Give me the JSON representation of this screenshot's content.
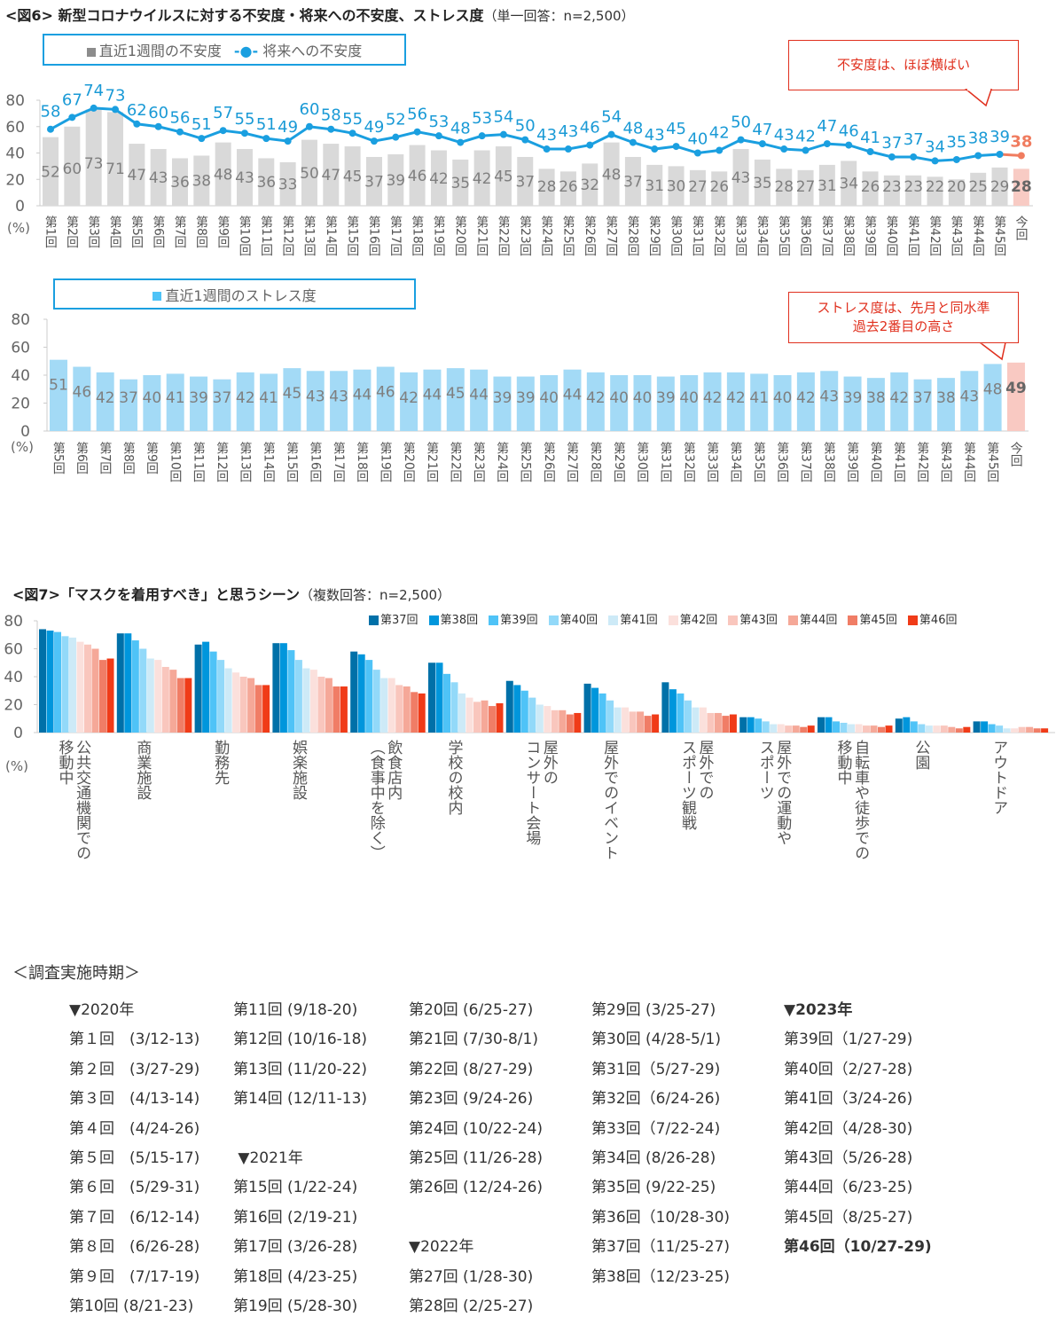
{
  "fig6": {
    "title": "<図6> 新型コロナウイルスに対する不安度・将来への不安度、ストレス度",
    "subtitle": "（単一回答：n=2,500）",
    "pct_label": "(%)"
  },
  "fig7": {
    "title": "<図7>「マスクを着用すべき」と思うシーン",
    "subtitle": "（複数回答：n=2,500）",
    "pct_label": "(%)"
  },
  "callouts": {
    "anxiety": "不安度は、ほぼ横ばい",
    "stress_line1": "ストレス度は、先月と同水準",
    "stress_line2": "過去2番目の高さ"
  },
  "chart_data": [
    {
      "type": "bar+line",
      "title": "不安度・将来への不安度",
      "ylim": [
        0,
        80
      ],
      "yticks": [
        "0",
        "20",
        "40",
        "60",
        "80"
      ],
      "categories": [
        "第1回",
        "第2回",
        "第3回",
        "第4回",
        "第5回",
        "第6回",
        "第7回",
        "第8回",
        "第9回",
        "第10回",
        "第11回",
        "第12回",
        "第13回",
        "第14回",
        "第15回",
        "第16回",
        "第17回",
        "第18回",
        "第19回",
        "第20回",
        "第21回",
        "第22回",
        "第23回",
        "第24回",
        "第25回",
        "第26回",
        "第27回",
        "第28回",
        "第29回",
        "第30回",
        "第31回",
        "第32回",
        "第33回",
        "第34回",
        "第35回",
        "第36回",
        "第37回",
        "第38回",
        "第39回",
        "第40回",
        "第41回",
        "第42回",
        "第43回",
        "第44回",
        "第45回",
        "今回"
      ],
      "series": [
        {
          "name": "直近1週間の不安度",
          "type": "bar",
          "color": "#d9d9d9",
          "current_color": "#f8cbc4",
          "values": [
            52,
            60,
            73,
            71,
            47,
            43,
            36,
            38,
            48,
            43,
            36,
            33,
            50,
            47,
            45,
            37,
            39,
            46,
            42,
            35,
            42,
            45,
            37,
            28,
            26,
            32,
            48,
            37,
            31,
            30,
            27,
            26,
            43,
            35,
            28,
            27,
            31,
            34,
            26,
            23,
            23,
            22,
            20,
            25,
            29,
            28
          ]
        },
        {
          "name": "将来への不安度",
          "type": "line",
          "color": "#1a9fe0",
          "current_color": "#f07c5f",
          "values": [
            58,
            67,
            74,
            73,
            62,
            60,
            56,
            51,
            57,
            55,
            51,
            49,
            60,
            58,
            55,
            49,
            52,
            56,
            53,
            48,
            53,
            54,
            50,
            43,
            43,
            46,
            54,
            48,
            43,
            45,
            40,
            42,
            50,
            47,
            43,
            42,
            47,
            46,
            41,
            37,
            37,
            34,
            35,
            38,
            39,
            38
          ]
        }
      ]
    },
    {
      "type": "bar",
      "title": "直近1週間のストレス度",
      "ylim": [
        0,
        80
      ],
      "yticks": [
        "0",
        "20",
        "40",
        "60",
        "80"
      ],
      "categories": [
        "第5回",
        "第6回",
        "第7回",
        "第8回",
        "第9回",
        "第10回",
        "第11回",
        "第12回",
        "第13回",
        "第14回",
        "第15回",
        "第16回",
        "第17回",
        "第18回",
        "第19回",
        "第20回",
        "第21回",
        "第22回",
        "第23回",
        "第24回",
        "第25回",
        "第26回",
        "第27回",
        "第28回",
        "第29回",
        "第30回",
        "第31回",
        "第32回",
        "第33回",
        "第34回",
        "第35回",
        "第36回",
        "第37回",
        "第38回",
        "第39回",
        "第40回",
        "第41回",
        "第42回",
        "第43回",
        "第44回",
        "第45回",
        "今回"
      ],
      "series": [
        {
          "name": "直近1週間のストレス度",
          "color": "#a3daf6",
          "current_color": "#f9c9c2",
          "values": [
            51,
            46,
            42,
            37,
            40,
            41,
            39,
            37,
            42,
            41,
            45,
            43,
            43,
            44,
            46,
            42,
            44,
            45,
            44,
            39,
            39,
            40,
            44,
            42,
            40,
            40,
            39,
            40,
            42,
            42,
            41,
            40,
            42,
            43,
            39,
            38,
            42,
            37,
            38,
            43,
            48,
            49
          ]
        }
      ]
    },
    {
      "type": "bar",
      "title": "「マスクを着用すべき」と思うシーン",
      "ylim": [
        0,
        80
      ],
      "yticks": [
        "0",
        "20",
        "40",
        "60",
        "80"
      ],
      "legend_position": "top-right",
      "categories": [
        "公共交通機関での\n移動中",
        "商業施設",
        "勤務先",
        "娯楽施設",
        "飲食店内\n（食事中を除く）",
        "学校の校内",
        "屋外の\nコンサート会場",
        "屋外でのイベント",
        "屋外での\nスポーツ観戦",
        "屋外での運動や\nスポーツ",
        "自転車や徒歩での\n移動中",
        "公園",
        "アウトドア"
      ],
      "series": [
        {
          "name": "第37回",
          "color": "#0070a8",
          "values": [
            74,
            71,
            63,
            64,
            58,
            50,
            37,
            35,
            36,
            11,
            11,
            10,
            8
          ]
        },
        {
          "name": "第38回",
          "color": "#0096dc",
          "values": [
            73,
            71,
            65,
            64,
            56,
            50,
            34,
            32,
            31,
            11,
            11,
            11,
            8
          ]
        },
        {
          "name": "第39回",
          "color": "#4fc3f7",
          "values": [
            72,
            66,
            58,
            59,
            52,
            42,
            30,
            28,
            28,
            10,
            8,
            8,
            6
          ]
        },
        {
          "name": "第40回",
          "color": "#92d9f9",
          "values": [
            69,
            60,
            52,
            52,
            45,
            36,
            25,
            23,
            23,
            8,
            7,
            6,
            5
          ]
        },
        {
          "name": "第41回",
          "color": "#cdeaf7",
          "values": [
            68,
            53,
            46,
            46,
            39,
            28,
            20,
            18,
            18,
            6,
            6,
            5,
            3
          ]
        },
        {
          "name": "第42回",
          "color": "#fbe0dc",
          "values": [
            65,
            52,
            43,
            45,
            39,
            25,
            19,
            18,
            18,
            6,
            6,
            5,
            3
          ]
        },
        {
          "name": "第43回",
          "color": "#f9c6bd",
          "values": [
            63,
            47,
            40,
            40,
            34,
            22,
            16,
            15,
            14,
            5,
            5,
            5,
            4
          ]
        },
        {
          "name": "第44回",
          "color": "#f5a898",
          "values": [
            60,
            45,
            39,
            39,
            33,
            23,
            16,
            15,
            14,
            5,
            5,
            4,
            4
          ]
        },
        {
          "name": "第45回",
          "color": "#f07d66",
          "values": [
            52,
            39,
            34,
            33,
            29,
            19,
            13,
            12,
            12,
            4,
            4,
            3,
            3
          ]
        },
        {
          "name": "第46回",
          "color": "#f03b18",
          "values": [
            53,
            39,
            34,
            33,
            28,
            21,
            14,
            13,
            13,
            5,
            5,
            4,
            3
          ]
        }
      ]
    }
  ],
  "schedule": {
    "heading": "＜調査実施時期＞",
    "columns": [
      [
        "▼2020年",
        "第１回　(3/12-13)",
        "第２回　(3/27-29)",
        "第３回　(4/13-14)",
        "第４回　(4/24-26)",
        "第５回　(5/15-17)",
        "第６回　(5/29-31)",
        "第７回　(6/12-14)",
        "第８回　(6/26-28)",
        "第９回　(7/17-19)",
        "第10回 (8/21-23)"
      ],
      [
        "第11回 (9/18-20)",
        "第12回 (10/16-18)",
        "第13回 (11/20-22)",
        "第14回 (12/11-13)",
        "",
        " ▼2021年",
        "第15回 (1/22-24)",
        "第16回 (2/19-21)",
        "第17回 (3/26-28)",
        "第18回 (4/23-25)",
        "第19回 (5/28-30)"
      ],
      [
        "第20回 (6/25-27)",
        "第21回 (7/30-8/1)",
        "第22回 (8/27-29)",
        "第23回 (9/24-26)",
        "第24回 (10/22-24)",
        "第25回 (11/26-28)",
        "第26回 (12/24-26)",
        "",
        "▼2022年",
        "第27回 (1/28-30)",
        "第28回 (2/25-27)"
      ],
      [
        "第29回 (3/25-27)",
        "第30回 (4/28-5/1)",
        "第31回（5/27-29)",
        "第32回（6/24-26)",
        "第33回（7/22-24)",
        "第34回 (8/26-28)",
        "第35回 (9/22-25)",
        "第36回（10/28-30)",
        "第37回（11/25-27)",
        "第38回（12/23-25)"
      ],
      [
        "▼2023年",
        "第39回（1/27-29)",
        "第40回（2/27-28)",
        "第41回（3/24-26)",
        "第42回（4/28-30)",
        "第43回（5/26-28)",
        "第44回（6/23-25)",
        "第45回（8/25-27)",
        "第46回（10/27-29)"
      ]
    ],
    "bold_items": [
      "▼2023年",
      "第46回（10/27-29)"
    ]
  }
}
